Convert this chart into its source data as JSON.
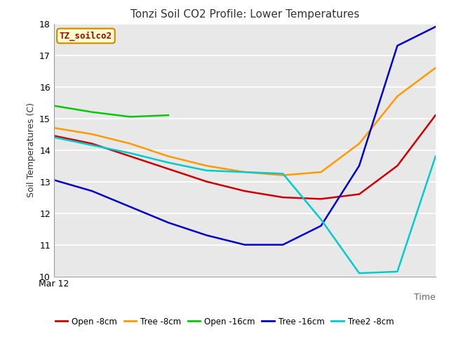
{
  "title": "Tonzi Soil CO2 Profile: Lower Temperatures",
  "xlabel": "Time",
  "ylabel": "Soil Temperatures (C)",
  "watermark": "TZ_soilco2",
  "ylim": [
    10.0,
    18.0
  ],
  "yticks": [
    10.0,
    11.0,
    12.0,
    13.0,
    14.0,
    15.0,
    16.0,
    17.0,
    18.0
  ],
  "x_label_start": "Mar 12",
  "plot_bg_color": "#e8e8e8",
  "fig_bg_color": "#ffffff",
  "series": [
    {
      "name": "Open -8cm",
      "color": "#cc0000",
      "x": [
        0,
        1,
        2,
        3,
        4,
        5,
        6,
        7,
        8,
        9,
        10
      ],
      "y": [
        14.45,
        14.2,
        13.8,
        13.4,
        13.0,
        12.7,
        12.5,
        12.45,
        12.6,
        13.5,
        15.1
      ]
    },
    {
      "name": "Tree -8cm",
      "color": "#ff9900",
      "x": [
        0,
        1,
        2,
        3,
        4,
        5,
        6,
        7,
        8,
        9,
        10
      ],
      "y": [
        14.7,
        14.5,
        14.2,
        13.8,
        13.5,
        13.3,
        13.2,
        13.3,
        14.2,
        15.7,
        16.6
      ]
    },
    {
      "name": "Open -16cm",
      "color": "#00cc00",
      "x": [
        0,
        1,
        2,
        3
      ],
      "y": [
        15.4,
        15.2,
        15.05,
        15.1
      ]
    },
    {
      "name": "Tree -16cm",
      "color": "#0000cc",
      "x": [
        0,
        1,
        2,
        3,
        4,
        5,
        6,
        7,
        8,
        9,
        10
      ],
      "y": [
        13.05,
        12.7,
        12.2,
        11.7,
        11.3,
        11.0,
        11.0,
        11.6,
        13.5,
        17.3,
        17.9
      ]
    },
    {
      "name": "Tree2 -8cm",
      "color": "#00cccc",
      "x": [
        0,
        1,
        2,
        3,
        4,
        5,
        6,
        7,
        8,
        9,
        10
      ],
      "y": [
        14.4,
        14.15,
        13.9,
        13.6,
        13.35,
        13.3,
        13.25,
        11.8,
        10.1,
        10.15,
        13.8
      ]
    }
  ]
}
